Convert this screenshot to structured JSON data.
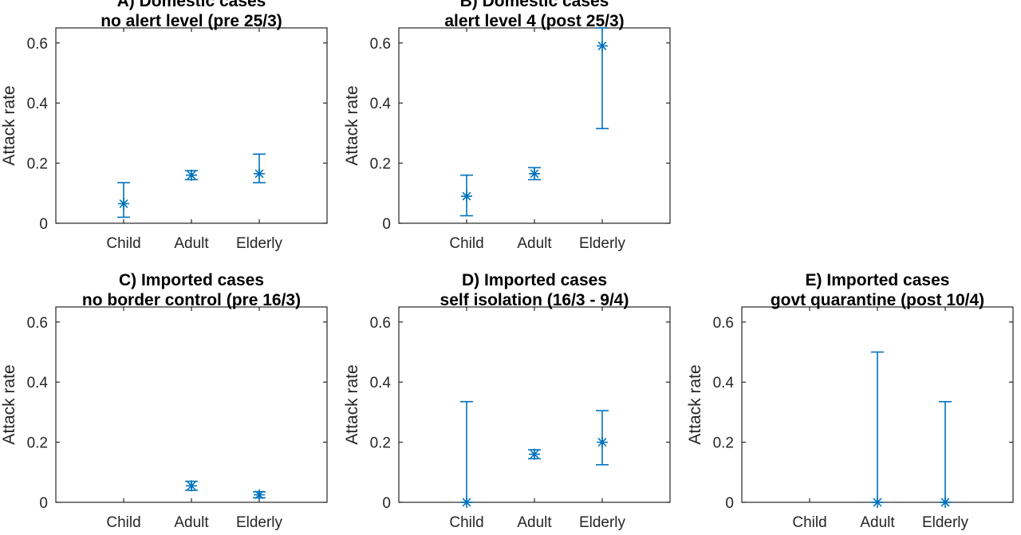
{
  "colors": {
    "series": "#0072BD",
    "axis": "#262626"
  },
  "chart_data": [
    {
      "type": "scatter",
      "title": [
        "A) Domestic cases",
        "no alert level (pre 25/3)"
      ],
      "ylabel": "Attack rate",
      "categories": [
        "Child",
        "Adult",
        "Elderly"
      ],
      "yticks": [
        "0",
        "0.2",
        "0.4",
        "0.6"
      ],
      "ylim": [
        0,
        0.65
      ],
      "values": [
        0.065,
        0.16,
        0.165
      ],
      "lower": [
        0.02,
        0.145,
        0.135
      ],
      "upper": [
        0.135,
        0.175,
        0.23
      ]
    },
    {
      "type": "scatter",
      "title": [
        "B) Domestic cases",
        "alert level 4 (post 25/3)"
      ],
      "ylabel": "Attack rate",
      "categories": [
        "Child",
        "Adult",
        "Elderly"
      ],
      "yticks": [
        "0",
        "0.2",
        "0.4",
        "0.6"
      ],
      "ylim": [
        0,
        0.65
      ],
      "values": [
        0.09,
        0.165,
        0.59
      ],
      "lower": [
        0.025,
        0.145,
        0.315
      ],
      "upper": [
        0.16,
        0.185,
        0.65
      ]
    },
    {
      "type": "scatter",
      "title": [
        "C) Imported cases",
        "no border control (pre 16/3)"
      ],
      "ylabel": "Attack rate",
      "categories": [
        "Child",
        "Adult",
        "Elderly"
      ],
      "yticks": [
        "0",
        "0.2",
        "0.4",
        "0.6"
      ],
      "ylim": [
        0,
        0.65
      ],
      "values": [
        null,
        0.055,
        0.025
      ],
      "lower": [
        null,
        0.04,
        0.015
      ],
      "upper": [
        null,
        0.07,
        0.035
      ]
    },
    {
      "type": "scatter",
      "title": [
        "D) Imported cases",
        "self isolation (16/3 - 9/4)"
      ],
      "ylabel": "Attack rate",
      "categories": [
        "Child",
        "Adult",
        "Elderly"
      ],
      "yticks": [
        "0",
        "0.2",
        "0.4",
        "0.6"
      ],
      "ylim": [
        0,
        0.65
      ],
      "values": [
        0,
        0.16,
        0.2
      ],
      "lower": [
        0,
        0.145,
        0.125
      ],
      "upper": [
        0.335,
        0.175,
        0.305
      ]
    },
    {
      "type": "scatter",
      "title": [
        "E) Imported cases",
        "govt quarantine (post 10/4)"
      ],
      "ylabel": "Attack rate",
      "categories": [
        "Child",
        "Adult",
        "Elderly"
      ],
      "yticks": [
        "0",
        "0.2",
        "0.4",
        "0.6"
      ],
      "ylim": [
        0,
        0.65
      ],
      "values": [
        null,
        0,
        0
      ],
      "lower": [
        null,
        0,
        0
      ],
      "upper": [
        null,
        0.5,
        0.335
      ]
    }
  ]
}
